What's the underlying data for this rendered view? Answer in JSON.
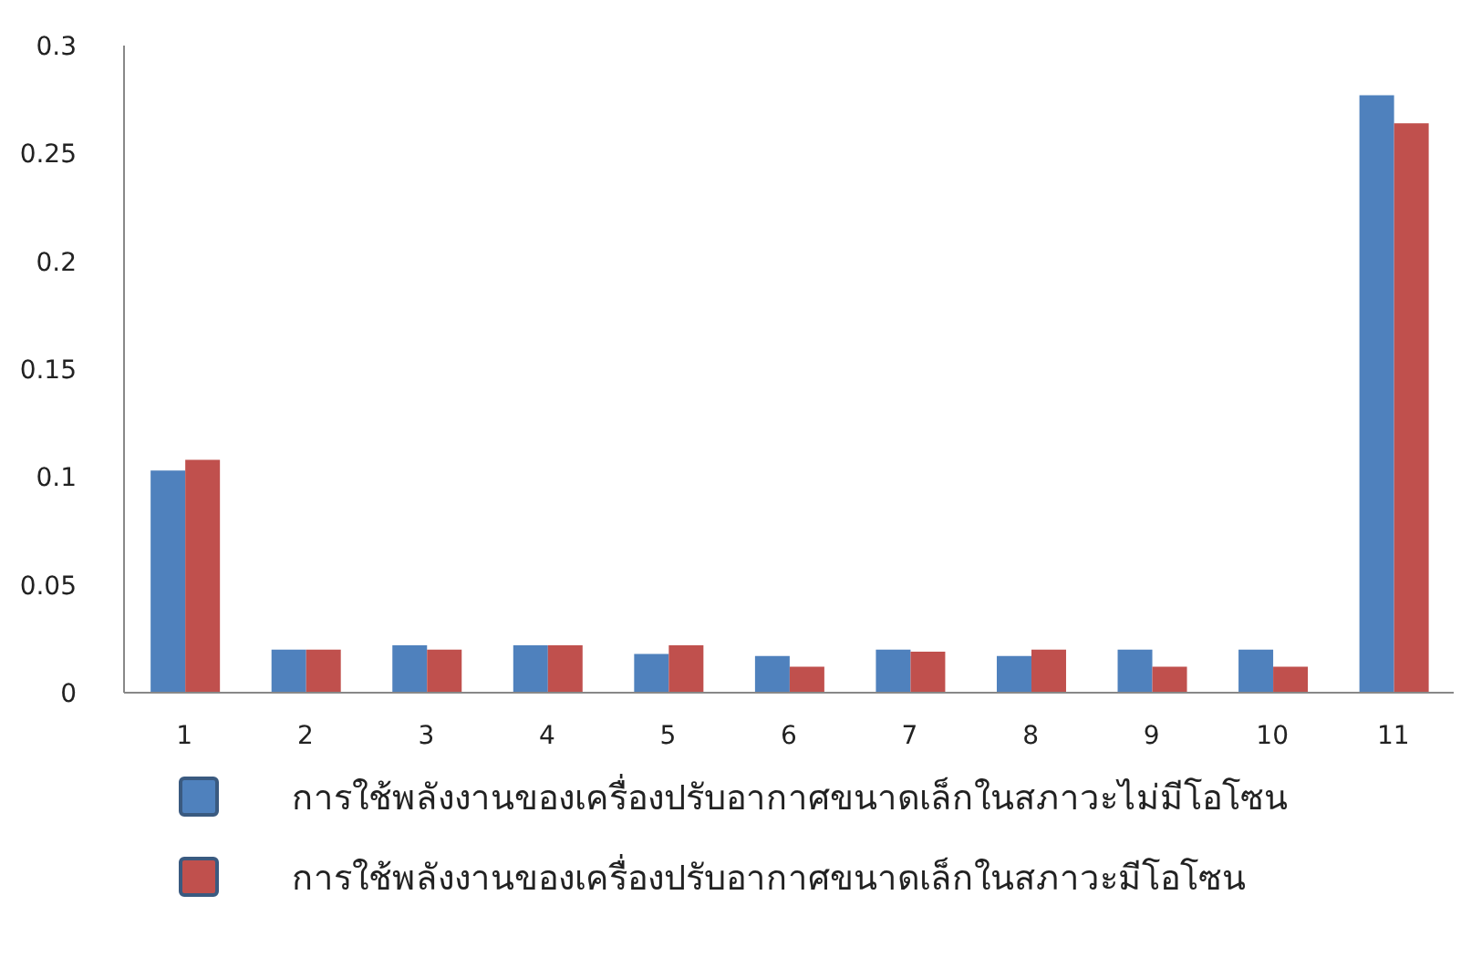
{
  "chart_data": {
    "type": "bar",
    "categories": [
      "1",
      "2",
      "3",
      "4",
      "5",
      "6",
      "7",
      "8",
      "9",
      "10",
      "11"
    ],
    "series": [
      {
        "name": "การใช้พลังงานของเครื่องปรับอากาศขนาดเล็กในสภาวะไม่มีโอโซน",
        "color": "#4f81bd",
        "values": [
          0.103,
          0.02,
          0.022,
          0.022,
          0.018,
          0.017,
          0.02,
          0.017,
          0.02,
          0.02,
          0.277
        ]
      },
      {
        "name": "การใช้พลังงานของเครื่องปรับอากาศขนาดเล็กในสภาวะมีโอโซน",
        "color": "#c0504d",
        "values": [
          0.108,
          0.02,
          0.02,
          0.022,
          0.022,
          0.012,
          0.019,
          0.02,
          0.012,
          0.012,
          0.264
        ]
      }
    ],
    "ylim": [
      0,
      0.3
    ],
    "yticks": [
      0,
      0.05,
      0.1,
      0.15,
      0.2,
      0.25,
      0.3
    ],
    "grid": false,
    "legend": "bottom"
  }
}
